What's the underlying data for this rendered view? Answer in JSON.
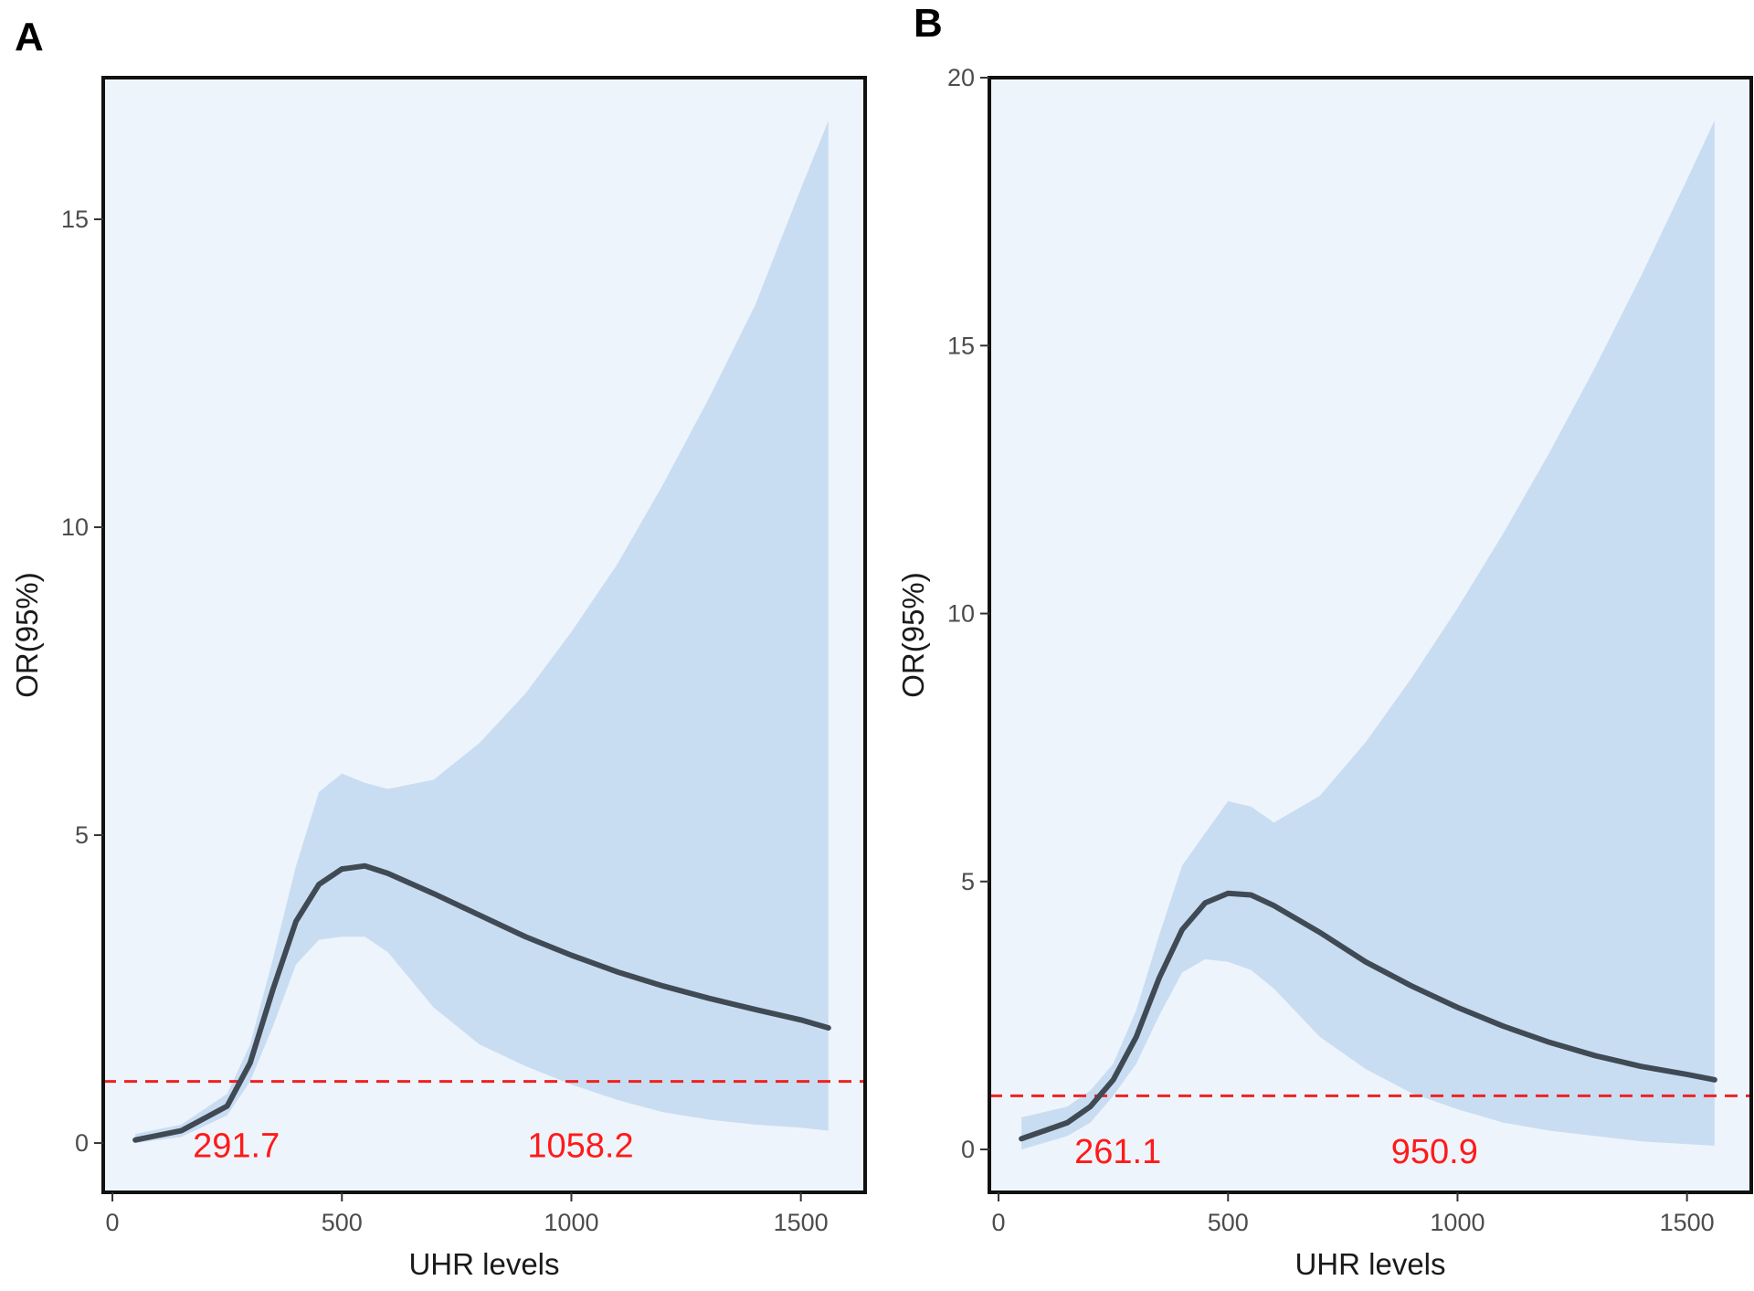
{
  "figure": {
    "panels": [
      "A",
      "B"
    ]
  },
  "chart_data": [
    {
      "type": "line",
      "panel": "A",
      "title": "",
      "xlabel": "UHR levels",
      "ylabel": "OR(95%)",
      "xlim": [
        -20,
        1640
      ],
      "ylim": [
        -0.8,
        17.3
      ],
      "xticks": [
        0,
        500,
        1000,
        1500
      ],
      "xtick_labels": [
        "0",
        "500",
        "1000",
        "1500"
      ],
      "yticks": [
        0,
        5,
        10,
        15
      ],
      "ytick_labels": [
        "0",
        "5",
        "10",
        "15"
      ],
      "reference_line": {
        "y": 1,
        "style": "dashed",
        "color": "#ee2222"
      },
      "series": [
        {
          "name": "OR",
          "x": [
            50,
            150,
            250,
            300,
            350,
            400,
            450,
            500,
            550,
            600,
            700,
            800,
            900,
            1000,
            1100,
            1200,
            1300,
            1400,
            1500,
            1560
          ],
          "y": [
            0.05,
            0.2,
            0.6,
            1.3,
            2.5,
            3.6,
            4.2,
            4.45,
            4.5,
            4.38,
            4.05,
            3.7,
            3.35,
            3.05,
            2.78,
            2.55,
            2.35,
            2.17,
            2.0,
            1.87
          ]
        }
      ],
      "ci_band": {
        "x": [
          50,
          150,
          250,
          300,
          350,
          400,
          450,
          500,
          550,
          600,
          700,
          800,
          900,
          1000,
          1100,
          1200,
          1300,
          1400,
          1500,
          1560
        ],
        "upper": [
          0.15,
          0.3,
          0.8,
          1.6,
          3.0,
          4.5,
          5.7,
          6.0,
          5.85,
          5.75,
          5.9,
          6.5,
          7.3,
          8.3,
          9.4,
          10.7,
          12.1,
          13.6,
          15.5,
          16.6
        ],
        "lower": [
          0.0,
          0.1,
          0.45,
          1.0,
          1.9,
          2.9,
          3.3,
          3.35,
          3.35,
          3.1,
          2.2,
          1.6,
          1.25,
          0.95,
          0.7,
          0.5,
          0.38,
          0.3,
          0.25,
          0.2
        ]
      },
      "annotations": [
        "291.7",
        "1058.2"
      ],
      "colors": {
        "line": "#3f4a55",
        "band": "#c9ddf2",
        "panel_bg": "#eef4fb"
      }
    },
    {
      "type": "line",
      "panel": "B",
      "title": "",
      "xlabel": "UHR levels",
      "ylabel": "OR(95%)",
      "xlim": [
        -20,
        1640
      ],
      "ylim": [
        -0.8,
        20.0
      ],
      "xticks": [
        0,
        500,
        1000,
        1500
      ],
      "xtick_labels": [
        "0",
        "500",
        "1000",
        "1500"
      ],
      "yticks": [
        0,
        5,
        10,
        15,
        20
      ],
      "ytick_labels": [
        "0",
        "5",
        "10",
        "15",
        "20"
      ],
      "reference_line": {
        "y": 1,
        "style": "dashed",
        "color": "#ee2222"
      },
      "series": [
        {
          "name": "OR",
          "x": [
            50,
            150,
            200,
            250,
            300,
            350,
            400,
            450,
            500,
            550,
            600,
            700,
            800,
            900,
            1000,
            1100,
            1200,
            1300,
            1400,
            1500,
            1560
          ],
          "y": [
            0.2,
            0.5,
            0.8,
            1.3,
            2.1,
            3.2,
            4.1,
            4.6,
            4.78,
            4.75,
            4.55,
            4.05,
            3.5,
            3.05,
            2.65,
            2.3,
            2.0,
            1.75,
            1.55,
            1.4,
            1.3
          ]
        }
      ],
      "ci_band": {
        "x": [
          50,
          150,
          200,
          250,
          300,
          350,
          400,
          450,
          500,
          550,
          600,
          700,
          800,
          900,
          1000,
          1100,
          1200,
          1300,
          1400,
          1500,
          1560
        ],
        "upper": [
          0.6,
          0.8,
          1.1,
          1.6,
          2.6,
          4.0,
          5.3,
          5.9,
          6.5,
          6.4,
          6.1,
          6.6,
          7.6,
          8.8,
          10.1,
          11.5,
          13.0,
          14.6,
          16.3,
          18.1,
          19.2
        ],
        "lower": [
          0.0,
          0.25,
          0.5,
          1.0,
          1.6,
          2.5,
          3.3,
          3.55,
          3.5,
          3.35,
          3.0,
          2.1,
          1.5,
          1.05,
          0.75,
          0.5,
          0.35,
          0.25,
          0.15,
          0.1,
          0.07
        ]
      },
      "annotations": [
        "261.1",
        "950.9"
      ],
      "colors": {
        "line": "#3f4a55",
        "band": "#c9ddf2",
        "panel_bg": "#eef4fb"
      }
    }
  ]
}
